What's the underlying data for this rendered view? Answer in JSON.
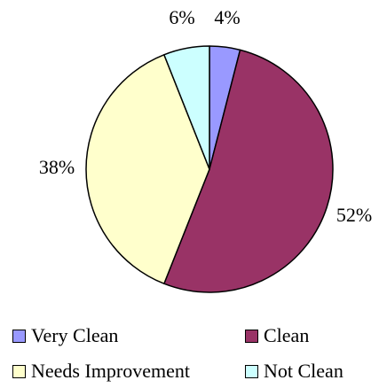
{
  "chart_data": {
    "type": "pie",
    "categories": [
      "Very Clean",
      "Clean",
      "Needs Improvement",
      "Not Clean"
    ],
    "values": [
      4,
      52,
      38,
      6
    ],
    "labels": [
      "4%",
      "52%",
      "38%",
      "6%"
    ],
    "colors": [
      "#9999ff",
      "#993366",
      "#ffffcc",
      "#ccffff"
    ],
    "legend_position": "bottom"
  },
  "legend": {
    "items": [
      {
        "label": "Very Clean",
        "color": "#9999ff"
      },
      {
        "label": "Clean",
        "color": "#993366"
      },
      {
        "label": "Needs Improvement",
        "color": "#ffffcc"
      },
      {
        "label": "Not Clean",
        "color": "#ccffff"
      }
    ]
  }
}
